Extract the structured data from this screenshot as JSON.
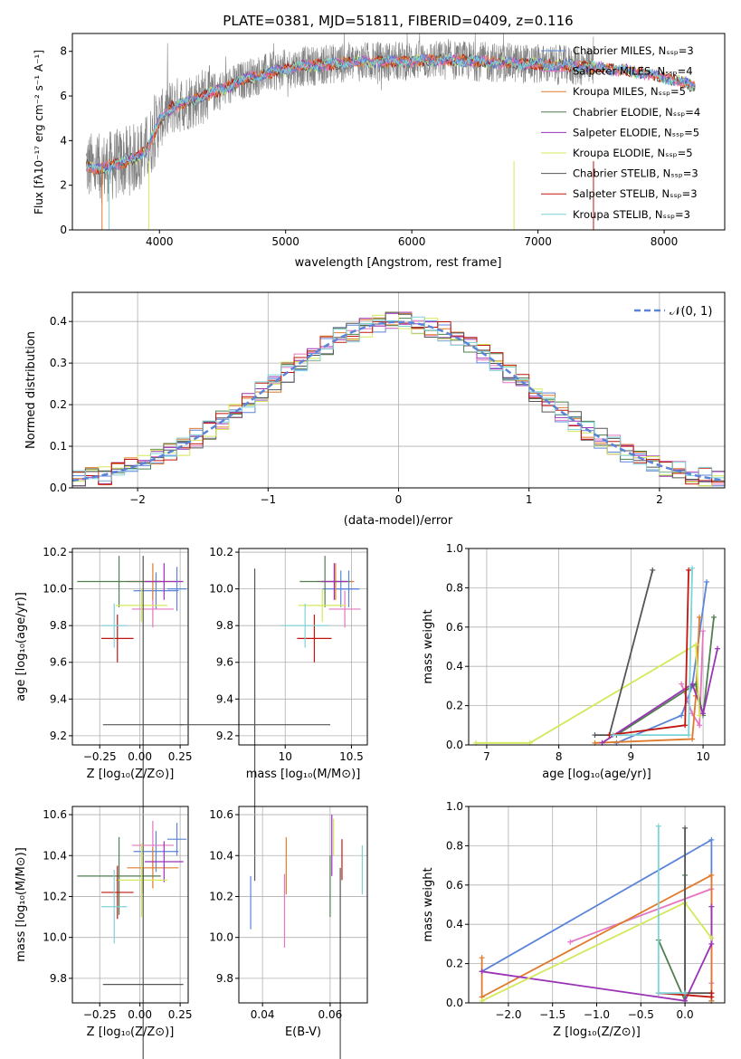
{
  "colors": {
    "chabrier_miles": "#5b84d9",
    "salpeter_miles": "#e377c2",
    "kroupa_miles": "#e07b2c",
    "chabrier_elodie": "#4f7f4f",
    "salpeter_elodie": "#9a33b5",
    "kroupa_elodie": "#d4e85a",
    "chabrier_stelib": "#555555",
    "salpeter_stelib": "#c0160f",
    "kroupa_stelib": "#7ed3d6",
    "grid": "#b0b0b0",
    "normal_curve": "#5b84d9"
  },
  "chart_data": [
    {
      "id": "spectrum",
      "type": "line",
      "title": "PLATE=0381, MJD=51811, FIBERID=0409, z=0.116",
      "xlabel": "wavelength [Angstrom, rest frame]",
      "ylabel": "Flux [fλ10⁻¹⁷ erg cm⁻² s⁻¹ A⁻¹]",
      "xlim": [
        3310,
        8480
      ],
      "ylim": [
        0,
        8.8
      ],
      "xticks": [
        4000,
        5000,
        6000,
        7000,
        8000
      ],
      "yticks": [
        0,
        2,
        4,
        6,
        8
      ],
      "legend_position": "top-right",
      "legend": [
        "Chabrier MILES, N_SSP=3",
        "Salpeter MILES, N_SSP=4",
        "Kroupa MILES, N_SSP=5",
        "Chabrier ELODIE, N_SSP=4",
        "Salpeter ELODIE, N_SSP=5",
        "Kroupa ELODIE, N_SSP=5",
        "Chabrier STELIB, N_SSP=3",
        "Salpeter STELIB, N_SSP=3",
        "Kroupa STELIB, N_SSP=3"
      ],
      "model_continuum": {
        "x": [
          3420,
          3500,
          3600,
          3700,
          3800,
          3900,
          3950,
          4000,
          4100,
          4200,
          4300,
          4500,
          4700,
          4900,
          5100,
          5300,
          5500,
          5700,
          5900,
          6100,
          6300,
          6500,
          6700,
          6900,
          7100,
          7300,
          7500,
          7700,
          7900,
          8100,
          8250
        ],
        "y": [
          2.9,
          2.7,
          2.85,
          3.0,
          3.2,
          3.6,
          4.2,
          4.9,
          5.5,
          5.7,
          5.9,
          6.3,
          6.8,
          7.1,
          7.3,
          7.4,
          7.5,
          7.55,
          7.55,
          7.6,
          7.6,
          7.55,
          7.5,
          7.45,
          7.4,
          7.35,
          7.25,
          7.15,
          6.95,
          6.7,
          6.4
        ]
      },
      "data_extent": {
        "x_start": 3420,
        "x_end": 7440,
        "y_max": 8.8
      }
    },
    {
      "id": "residuals",
      "type": "line",
      "xlabel": "(data-model)/error",
      "ylabel": "Normed distribution",
      "xlim": [
        -2.5,
        2.5
      ],
      "ylim": [
        0,
        0.47
      ],
      "xticks": [
        -2,
        -1,
        0,
        1,
        2
      ],
      "yticks": [
        0.0,
        0.1,
        0.2,
        0.3,
        0.4
      ],
      "grid": true,
      "legend_position": "top-right",
      "legend": [
        "𝒩(0, 1)"
      ],
      "normal_curve": {
        "mean": 0,
        "sigma": 1
      }
    },
    {
      "id": "age_vs_Z",
      "type": "scatter",
      "xlabel": "Z [log₁₀(Z/Z⊙)]",
      "ylabel": "age  [log₁₀(age/yr)]",
      "xlim": [
        -0.42,
        0.3
      ],
      "ylim": [
        9.15,
        10.22
      ],
      "xticks": [
        -0.25,
        0.0,
        0.25
      ],
      "xticklabels": [
        "−0.25",
        "0.00",
        "0.25"
      ],
      "yticks": [
        9.2,
        9.4,
        9.6,
        9.8,
        10.0,
        10.2
      ],
      "grid": true,
      "points": [
        {
          "x": 0.1,
          "y": 9.99,
          "xerr": 0.14,
          "yerr": 0.1
        },
        {
          "x": 0.08,
          "y": 9.89,
          "xerr": 0.13,
          "yerr": 0.1
        },
        {
          "x": 0.08,
          "y": 10.04,
          "xerr": 0.16,
          "yerr": 0.1
        },
        {
          "x": -0.13,
          "y": 10.04,
          "xerr": 0.26,
          "yerr": 0.14
        },
        {
          "x": 0.15,
          "y": 10.04,
          "xerr": 0.12,
          "yerr": 0.1
        },
        {
          "x": 0.01,
          "y": 9.91,
          "xerr": 0.16,
          "yerr": 0.09
        },
        {
          "x": 0.02,
          "y": 9.26,
          "xerr": 0.25,
          "yerr": 0.92
        },
        {
          "x": -0.14,
          "y": 9.73,
          "xerr": 0.1,
          "yerr": 0.13
        },
        {
          "x": -0.16,
          "y": 9.8,
          "xerr": 0.08,
          "yerr": 0.12
        },
        {
          "x": 0.23,
          "y": 10.0,
          "xerr": 0.06,
          "yerr": 0.12
        }
      ]
    },
    {
      "id": "age_vs_mass",
      "type": "scatter",
      "xlabel": "mass [log₁₀(M/M⊙)]",
      "ylabel": "",
      "xlim": [
        9.65,
        10.62
      ],
      "ylim": [
        9.15,
        10.22
      ],
      "xticks": [
        10.0,
        10.5
      ],
      "yticks": [
        9.2,
        9.4,
        9.6,
        9.8,
        10.0,
        10.2
      ],
      "grid": true,
      "points": [
        {
          "x": 10.42,
          "y": 10.0,
          "xerr": 0.14,
          "yerr": 0.1
        },
        {
          "x": 10.45,
          "y": 9.89,
          "xerr": 0.12,
          "yerr": 0.1
        },
        {
          "x": 10.38,
          "y": 10.04,
          "xerr": 0.14,
          "yerr": 0.1
        },
        {
          "x": 10.3,
          "y": 10.04,
          "xerr": 0.19,
          "yerr": 0.14
        },
        {
          "x": 10.37,
          "y": 10.04,
          "xerr": 0.1,
          "yerr": 0.1
        },
        {
          "x": 10.28,
          "y": 9.91,
          "xerr": 0.18,
          "yerr": 0.09
        },
        {
          "x": 9.77,
          "y": 9.26,
          "xerr": 0.57,
          "yerr": 0.85
        },
        {
          "x": 10.22,
          "y": 9.73,
          "xerr": 0.13,
          "yerr": 0.13
        },
        {
          "x": 10.15,
          "y": 9.8,
          "xerr": 0.18,
          "yerr": 0.12
        },
        {
          "x": 10.48,
          "y": 10.0,
          "xerr": 0.08,
          "yerr": 0.1
        }
      ]
    },
    {
      "id": "weight_vs_age",
      "type": "line",
      "xlabel": "age  [log₁₀(age/yr)]",
      "ylabel": "mass weight",
      "xlim": [
        6.75,
        10.3
      ],
      "ylim": [
        0,
        1.0
      ],
      "xticks": [
        7,
        8,
        9,
        10
      ],
      "yticks": [
        0.0,
        0.2,
        0.4,
        0.6,
        0.8,
        1.0
      ],
      "grid": true,
      "series": [
        {
          "x": [
            8.8,
            9.7,
            9.85,
            10.05
          ],
          "y": [
            0.01,
            0.15,
            0.3,
            0.83
          ]
        },
        {
          "x": [
            9.7,
            9.85,
            9.95,
            10.0
          ],
          "y": [
            0.31,
            0.16,
            0.1,
            0.58
          ]
        },
        {
          "x": [
            8.5,
            9.85,
            9.9,
            9.95
          ],
          "y": [
            0.01,
            0.03,
            0.25,
            0.65
          ]
        },
        {
          "x": [
            8.8,
            9.9,
            10.0,
            10.15
          ],
          "y": [
            0.05,
            0.31,
            0.15,
            0.65
          ]
        },
        {
          "x": [
            8.6,
            9.85,
            10.0,
            10.2
          ],
          "y": [
            0.01,
            0.31,
            0.16,
            0.49
          ]
        },
        {
          "x": [
            6.85,
            7.6,
            9.9,
            9.95
          ],
          "y": [
            0.01,
            0.01,
            0.51,
            0.15
          ]
        },
        {
          "x": [
            8.5,
            8.7,
            9.3
          ],
          "y": [
            0.05,
            0.05,
            0.89
          ]
        },
        {
          "x": [
            8.7,
            9.75,
            9.8
          ],
          "y": [
            0.05,
            0.1,
            0.89
          ]
        },
        {
          "x": [
            8.75,
            9.8,
            9.85
          ],
          "y": [
            0.05,
            0.05,
            0.9
          ]
        }
      ]
    },
    {
      "id": "mass_vs_Z",
      "type": "scatter",
      "xlabel": "Z [log₁₀(Z/Z⊙)]",
      "ylabel": "mass [log₁₀(M/M⊙)]",
      "xlim": [
        -0.42,
        0.3
      ],
      "ylim": [
        9.68,
        10.64
      ],
      "xticks": [
        -0.25,
        0.0,
        0.25
      ],
      "xticklabels": [
        "−0.25",
        "0.00",
        "0.25"
      ],
      "yticks": [
        9.8,
        10.0,
        10.2,
        10.4,
        10.6
      ],
      "grid": true,
      "points": [
        {
          "x": 0.1,
          "y": 10.42,
          "xerr": 0.14,
          "yerr": 0.1
        },
        {
          "x": 0.08,
          "y": 10.45,
          "xerr": 0.13,
          "yerr": 0.12
        },
        {
          "x": 0.08,
          "y": 10.34,
          "xerr": 0.16,
          "yerr": 0.1
        },
        {
          "x": -0.13,
          "y": 10.3,
          "xerr": 0.26,
          "yerr": 0.19
        },
        {
          "x": 0.15,
          "y": 10.37,
          "xerr": 0.12,
          "yerr": 0.1
        },
        {
          "x": 0.01,
          "y": 10.28,
          "xerr": 0.16,
          "yerr": 0.18
        },
        {
          "x": 0.02,
          "y": 9.77,
          "xerr": 0.25,
          "yerr": 0.57
        },
        {
          "x": -0.14,
          "y": 10.22,
          "xerr": 0.1,
          "yerr": 0.13
        },
        {
          "x": -0.16,
          "y": 10.15,
          "xerr": 0.08,
          "yerr": 0.18
        },
        {
          "x": 0.23,
          "y": 10.48,
          "xerr": 0.06,
          "yerr": 0.08
        }
      ]
    },
    {
      "id": "mass_vs_ebv",
      "type": "scatter",
      "xlabel": "E(B-V)",
      "ylabel": "",
      "xlim": [
        0.033,
        0.071
      ],
      "ylim": [
        9.68,
        10.64
      ],
      "xticks": [
        0.04,
        0.06
      ],
      "yticks": [
        9.8,
        10.0,
        10.2,
        10.4,
        10.6
      ],
      "grid": true,
      "points": [
        {
          "x": 0.0365,
          "y": 10.17,
          "yerr": 0.13
        },
        {
          "x": 0.0465,
          "y": 10.13,
          "yerr": 0.18
        },
        {
          "x": 0.047,
          "y": 10.35,
          "yerr": 0.14
        },
        {
          "x": 0.06,
          "y": 10.25,
          "yerr": 0.15
        },
        {
          "x": 0.0605,
          "y": 10.45,
          "yerr": 0.15
        },
        {
          "x": 0.061,
          "y": 10.49,
          "yerr": 0.09
        },
        {
          "x": 0.063,
          "y": 9.77,
          "yerr": 0.57
        },
        {
          "x": 0.0635,
          "y": 10.38,
          "yerr": 0.1
        },
        {
          "x": 0.0695,
          "y": 10.33,
          "yerr": 0.12
        }
      ]
    },
    {
      "id": "weight_vs_Z",
      "type": "line",
      "xlabel": "Z [log₁₀(Z/Z⊙)]",
      "ylabel": "mass weight",
      "xlim": [
        -2.45,
        0.45
      ],
      "ylim": [
        0,
        1.0
      ],
      "xticks": [
        -2.0,
        -1.5,
        -1.0,
        -0.5,
        0.0
      ],
      "xticklabels": [
        "−2.0",
        "−1.5",
        "−1.0",
        "−0.5",
        "0.0"
      ],
      "yticks": [
        0.0,
        0.2,
        0.4,
        0.6,
        0.8,
        1.0
      ],
      "grid": true,
      "series": [
        {
          "x": [
            -2.3,
            0.3,
            0.3
          ],
          "y": [
            0.16,
            0.83,
            0.01
          ]
        },
        {
          "x": [
            -1.3,
            0.3,
            0.3
          ],
          "y": [
            0.31,
            0.58,
            0.1
          ]
        },
        {
          "x": [
            -2.3,
            -2.3,
            0.3,
            0.3
          ],
          "y": [
            0.23,
            0.03,
            0.65,
            0.01
          ]
        },
        {
          "x": [
            -0.3,
            0.0,
            0.0
          ],
          "y": [
            0.32,
            0.01,
            0.65
          ]
        },
        {
          "x": [
            -2.3,
            0.0,
            0.3,
            0.3
          ],
          "y": [
            0.16,
            0.01,
            0.3,
            0.49
          ]
        },
        {
          "x": [
            -2.3,
            0.0,
            0.3
          ],
          "y": [
            0.01,
            0.51,
            0.33
          ]
        },
        {
          "x": [
            0.0,
            0.0,
            0.3
          ],
          "y": [
            0.89,
            0.05,
            0.05
          ]
        },
        {
          "x": [
            -0.3,
            0.3,
            0.3
          ],
          "y": [
            0.05,
            0.03,
            0.05
          ]
        },
        {
          "x": [
            -0.3,
            -0.3,
            0.0
          ],
          "y": [
            0.9,
            0.05,
            0.05
          ]
        }
      ]
    }
  ]
}
